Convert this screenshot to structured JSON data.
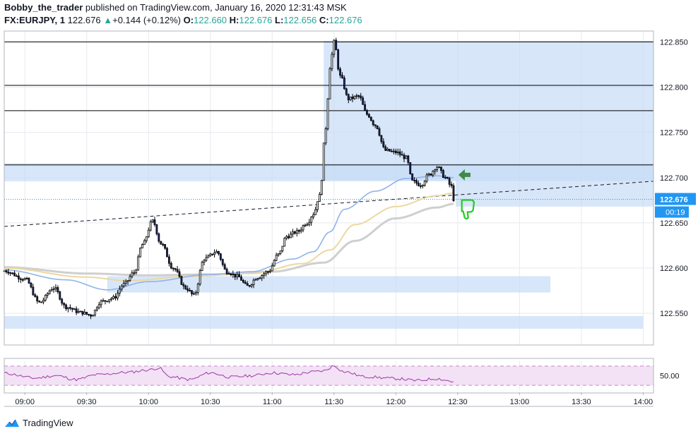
{
  "header": {
    "author": "Bobby_the_trader",
    "published_text": "published on TradingView.com, January 16, 2020 12:31:43 MSK",
    "symbol": "FX:EURJPY, 1",
    "last": "122.676",
    "change": "+0.144 (+0.12%)",
    "o_label": "O:",
    "o_value": "122.660",
    "h_label": "H:",
    "h_value": "122.676",
    "l_label": "L:",
    "l_value": "122.656",
    "c_label": "C:",
    "c_value": "122.676",
    "change_arrow": "▲"
  },
  "brand": {
    "name": "TradingView",
    "icon": "tradingview-logo-icon"
  },
  "colors": {
    "up": "#26a69a",
    "zone": "#c6dbf7",
    "candle_body": "#1e2a6b",
    "ema_blue": "#8fb4ea",
    "ema_yellow": "#ecd8a0",
    "ema_grey": "#cfcfcf",
    "rsi": "#9b3aa3",
    "rsi_band": "#f3e1f6",
    "price_badge": "#2196f3",
    "arrow": "#3d8b47",
    "thumb": "#22cc22"
  },
  "chart_data": {
    "type": "candlestick",
    "symbol": "FX:EURJPY",
    "interval": "1",
    "ylim": [
      122.515,
      122.862
    ],
    "y_ticks": [
      "122.550",
      "122.600",
      "122.650",
      "122.700",
      "122.750",
      "122.800",
      "122.850"
    ],
    "x_ticks": [
      "09:00",
      "09:30",
      "10:00",
      "10:30",
      "11:00",
      "11:30",
      "12:00",
      "12:30",
      "13:00",
      "13:30",
      "14:00"
    ],
    "xlim": [
      "08:50",
      "14:05"
    ],
    "last_price_label": "122.676",
    "countdown_label": "00:19",
    "close_series_anchors": [
      [
        "08:50",
        122.597
      ],
      [
        "09:00",
        122.588
      ],
      [
        "09:07",
        122.562
      ],
      [
        "09:14",
        122.578
      ],
      [
        "09:20",
        122.557
      ],
      [
        "09:27",
        122.551
      ],
      [
        "09:32",
        122.548
      ],
      [
        "09:37",
        122.563
      ],
      [
        "09:43",
        122.567
      ],
      [
        "09:48",
        122.582
      ],
      [
        "09:53",
        122.595
      ],
      [
        "09:57",
        122.626
      ],
      [
        "10:02",
        122.652
      ],
      [
        "10:06",
        122.627
      ],
      [
        "10:12",
        122.6
      ],
      [
        "10:18",
        122.578
      ],
      [
        "10:22",
        122.57
      ],
      [
        "10:27",
        122.61
      ],
      [
        "10:33",
        122.618
      ],
      [
        "10:38",
        122.596
      ],
      [
        "10:43",
        122.591
      ],
      [
        "10:48",
        122.58
      ],
      [
        "10:53",
        122.59
      ],
      [
        "10:58",
        122.596
      ],
      [
        "11:03",
        122.615
      ],
      [
        "11:07",
        122.635
      ],
      [
        "11:12",
        122.64
      ],
      [
        "11:17",
        122.65
      ],
      [
        "11:20",
        122.66
      ],
      [
        "11:23",
        122.68
      ],
      [
        "11:26",
        122.755
      ],
      [
        "11:28",
        122.822
      ],
      [
        "11:30",
        122.85
      ],
      [
        "11:33",
        122.812
      ],
      [
        "11:37",
        122.787
      ],
      [
        "11:42",
        122.79
      ],
      [
        "11:46",
        122.77
      ],
      [
        "11:50",
        122.758
      ],
      [
        "11:55",
        122.73
      ],
      [
        "12:00",
        122.728
      ],
      [
        "12:05",
        122.722
      ],
      [
        "12:08",
        122.696
      ],
      [
        "12:12",
        122.692
      ],
      [
        "12:16",
        122.703
      ],
      [
        "12:20",
        122.712
      ],
      [
        "12:24",
        122.7
      ],
      [
        "12:27",
        122.69
      ],
      [
        "12:28",
        122.676
      ]
    ],
    "horizontal_lines": [
      122.85,
      122.802,
      122.774,
      122.714
    ],
    "zones": [
      {
        "from": "11:25",
        "to": "14:05",
        "low": 122.697,
        "high": 122.851
      },
      {
        "from": "08:50",
        "to": "14:05",
        "low": 122.696,
        "high": 122.716
      },
      {
        "from": "12:29",
        "to": "14:05",
        "low": 122.668,
        "high": 122.697
      },
      {
        "from": "09:40",
        "to": "13:15",
        "low": 122.573,
        "high": 122.591
      },
      {
        "from": "08:50",
        "to": "14:00",
        "low": 122.533,
        "high": 122.547
      }
    ],
    "trendline": {
      "from": [
        "08:50",
        122.646
      ],
      "to": [
        "14:05",
        122.696
      ]
    },
    "ema_blue_anchors": [
      [
        "08:50",
        122.598
      ],
      [
        "09:20",
        122.587
      ],
      [
        "09:40",
        122.576
      ],
      [
        "10:00",
        122.585
      ],
      [
        "10:30",
        122.593
      ],
      [
        "10:50",
        122.596
      ],
      [
        "11:10",
        122.61
      ],
      [
        "11:20",
        122.618
      ],
      [
        "11:28",
        122.64
      ],
      [
        "11:35",
        122.665
      ],
      [
        "11:50",
        122.685
      ],
      [
        "12:05",
        122.699
      ],
      [
        "12:20",
        122.702
      ],
      [
        "12:28",
        122.7
      ]
    ],
    "ema_yellow_anchors": [
      [
        "08:50",
        122.6
      ],
      [
        "09:30",
        122.59
      ],
      [
        "09:50",
        122.586
      ],
      [
        "10:20",
        122.591
      ],
      [
        "10:50",
        122.594
      ],
      [
        "11:15",
        122.605
      ],
      [
        "11:28",
        122.62
      ],
      [
        "11:40",
        122.648
      ],
      [
        "12:00",
        122.668
      ],
      [
        "12:20",
        122.68
      ],
      [
        "12:28",
        122.683
      ]
    ],
    "ema_grey_anchors": [
      [
        "08:50",
        122.601
      ],
      [
        "09:30",
        122.594
      ],
      [
        "10:00",
        122.592
      ],
      [
        "10:30",
        122.593
      ],
      [
        "11:00",
        122.596
      ],
      [
        "11:25",
        122.606
      ],
      [
        "11:40",
        122.63
      ],
      [
        "12:00",
        122.655
      ],
      [
        "12:20",
        122.667
      ],
      [
        "12:28",
        122.671
      ]
    ],
    "rsi": {
      "level_label": "50.00",
      "level": 50,
      "band": [
        30,
        70
      ],
      "ylim": [
        20,
        80
      ],
      "anchors": [
        [
          "08:50",
          55
        ],
        [
          "09:05",
          45
        ],
        [
          "09:15",
          50
        ],
        [
          "09:25",
          42
        ],
        [
          "09:35",
          52
        ],
        [
          "09:50",
          57
        ],
        [
          "10:00",
          62
        ],
        [
          "10:05",
          66
        ],
        [
          "10:10",
          48
        ],
        [
          "10:20",
          42
        ],
        [
          "10:30",
          56
        ],
        [
          "10:40",
          47
        ],
        [
          "10:50",
          50
        ],
        [
          "11:00",
          56
        ],
        [
          "11:10",
          52
        ],
        [
          "11:20",
          58
        ],
        [
          "11:25",
          60
        ],
        [
          "11:30",
          70
        ],
        [
          "11:35",
          58
        ],
        [
          "11:45",
          48
        ],
        [
          "12:00",
          44
        ],
        [
          "12:10",
          40
        ],
        [
          "12:20",
          44
        ],
        [
          "12:25",
          40
        ],
        [
          "12:28",
          37
        ]
      ]
    },
    "annotations": {
      "arrow": {
        "time": "12:29",
        "price": 122.703,
        "icon": "left-arrow-icon"
      },
      "thumb": {
        "time": "12:32",
        "price": 122.669,
        "icon": "thumbs-down-icon"
      }
    }
  }
}
